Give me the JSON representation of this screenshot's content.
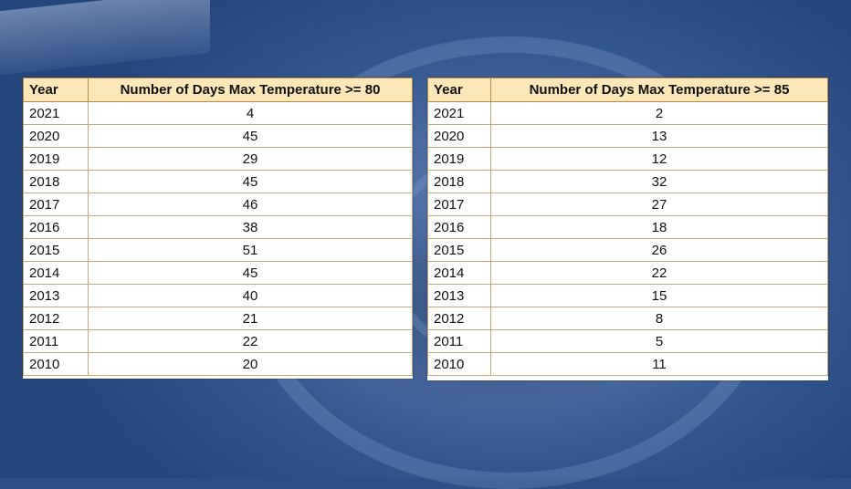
{
  "chart_data": [
    {
      "type": "table",
      "columns": [
        "Year",
        "Number of Days Max Temperature >= 80"
      ],
      "rows": [
        [
          "2021",
          "4"
        ],
        [
          "2020",
          "45"
        ],
        [
          "2019",
          "29"
        ],
        [
          "2018",
          "45"
        ],
        [
          "2017",
          "46"
        ],
        [
          "2016",
          "38"
        ],
        [
          "2015",
          "51"
        ],
        [
          "2014",
          "45"
        ],
        [
          "2013",
          "40"
        ],
        [
          "2012",
          "21"
        ],
        [
          "2011",
          "22"
        ],
        [
          "2010",
          "20"
        ]
      ]
    },
    {
      "type": "table",
      "columns": [
        "Year",
        "Number of Days Max Temperature >= 85"
      ],
      "rows": [
        [
          "2021",
          "2"
        ],
        [
          "2020",
          "13"
        ],
        [
          "2019",
          "12"
        ],
        [
          "2018",
          "32"
        ],
        [
          "2017",
          "27"
        ],
        [
          "2016",
          "18"
        ],
        [
          "2015",
          "26"
        ],
        [
          "2014",
          "22"
        ],
        [
          "2013",
          "15"
        ],
        [
          "2012",
          "8"
        ],
        [
          "2011",
          "5"
        ],
        [
          "2010",
          "11"
        ]
      ]
    }
  ]
}
